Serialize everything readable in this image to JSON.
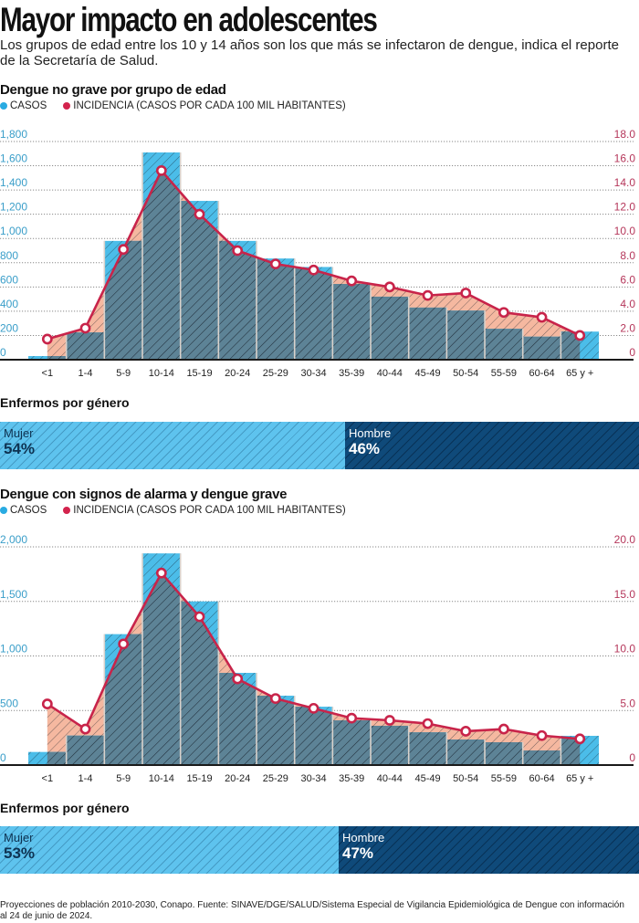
{
  "header": {
    "title": "Mayor impacto en adolescentes",
    "subtitle": "Los grupos de edad entre los 10 y 14 años son los que más se infectaron de dengue, indica el reporte de la Secretaría de Salud."
  },
  "colors": {
    "casos": "#4bbde9",
    "incidencia_line": "#c8244a",
    "incidencia_area": "#f5b8a0",
    "overlap": "#5d8396",
    "mujer": "#5ec3ee",
    "hombre": "#0f4a7a",
    "axis_left": "#3a9ec9",
    "axis_right": "#b5365a"
  },
  "legend": {
    "casos": "CASOS",
    "incidencia": "INCIDENCIA (CASOS POR CADA 100 MIL HABITANTES)"
  },
  "chart_data": [
    {
      "type": "bar",
      "title": "Dengue no grave por grupo de edad",
      "categories": [
        "<1",
        "1-4",
        "5-9",
        "10-14",
        "15-19",
        "20-24",
        "25-29",
        "30-34",
        "35-39",
        "40-44",
        "45-49",
        "50-54",
        "55-59",
        "60-64",
        "65 y +"
      ],
      "series": [
        {
          "name": "CASOS",
          "axis": "left",
          "kind": "bar",
          "values": [
            30,
            225,
            980,
            1710,
            1310,
            980,
            835,
            765,
            625,
            520,
            430,
            405,
            255,
            190,
            232
          ]
        },
        {
          "name": "INCIDENCIA (CASOS POR CADA 100 MIL HABITANTES)",
          "axis": "right",
          "kind": "line-area",
          "values": [
            1.7,
            2.6,
            9.1,
            15.6,
            12.0,
            9.0,
            7.9,
            7.4,
            6.5,
            6.0,
            5.3,
            5.5,
            3.9,
            3.5,
            2.0
          ]
        }
      ],
      "ylim_left": [
        0,
        1800
      ],
      "ylim_right": [
        0,
        18
      ],
      "yticks_left": [
        "0",
        "200",
        "400",
        "600",
        "800",
        "1,000",
        "1,200",
        "1,400",
        "1,600",
        "1,800"
      ],
      "yticks_right": [
        "0",
        "2.0",
        "4.0",
        "6.0",
        "8.0",
        "10.0",
        "12.0",
        "14.0",
        "16.0",
        "18.0"
      ],
      "grid": true,
      "legend_position": "top-left",
      "xlabel": "",
      "ylabel": ""
    },
    {
      "type": "bar",
      "title": "Dengue con signos de alarma y dengue grave",
      "categories": [
        "<1",
        "1-4",
        "5-9",
        "10-14",
        "15-19",
        "20-24",
        "25-29",
        "30-34",
        "35-39",
        "40-44",
        "45-49",
        "50-54",
        "55-59",
        "60-64",
        "65 y +"
      ],
      "series": [
        {
          "name": "CASOS",
          "axis": "left",
          "kind": "bar",
          "values": [
            120,
            270,
            1200,
            1940,
            1500,
            845,
            636,
            535,
            410,
            360,
            300,
            234,
            209,
            134,
            268
          ]
        },
        {
          "name": "INCIDENCIA (CASOS POR CADA 100 MIL HABITANTES)",
          "axis": "right",
          "kind": "line-area",
          "values": [
            5.6,
            3.3,
            11.1,
            17.6,
            13.6,
            7.9,
            6.1,
            5.2,
            4.3,
            4.1,
            3.8,
            3.1,
            3.3,
            2.7,
            2.4
          ]
        }
      ],
      "ylim_left": [
        0,
        2000
      ],
      "ylim_right": [
        0,
        20
      ],
      "yticks_left": [
        "0",
        "500",
        "1,000",
        "1,500",
        "2,000"
      ],
      "yticks_right": [
        "0",
        "5.0",
        "10.0",
        "15.0",
        "20.0"
      ],
      "grid": true,
      "legend_position": "top-left",
      "xlabel": "",
      "ylabel": ""
    }
  ],
  "gender": [
    {
      "title": "Enfermos por género",
      "mujer": {
        "label": "Mujer",
        "percent": 54,
        "text": "54%"
      },
      "hombre": {
        "label": "Hombre",
        "percent": 46,
        "text": "46%"
      }
    },
    {
      "title": "Enfermos por género",
      "mujer": {
        "label": "Mujer",
        "percent": 53,
        "text": "53%"
      },
      "hombre": {
        "label": "Hombre",
        "percent": 47,
        "text": "47%"
      }
    }
  ],
  "footer": "Proyecciones de población 2010-2030, Conapo. Fuente: SINAVE/DGE/SALUD/Sistema Especial de Vigilancia Epidemiológica de Dengue con información al 24 de junio de 2024."
}
